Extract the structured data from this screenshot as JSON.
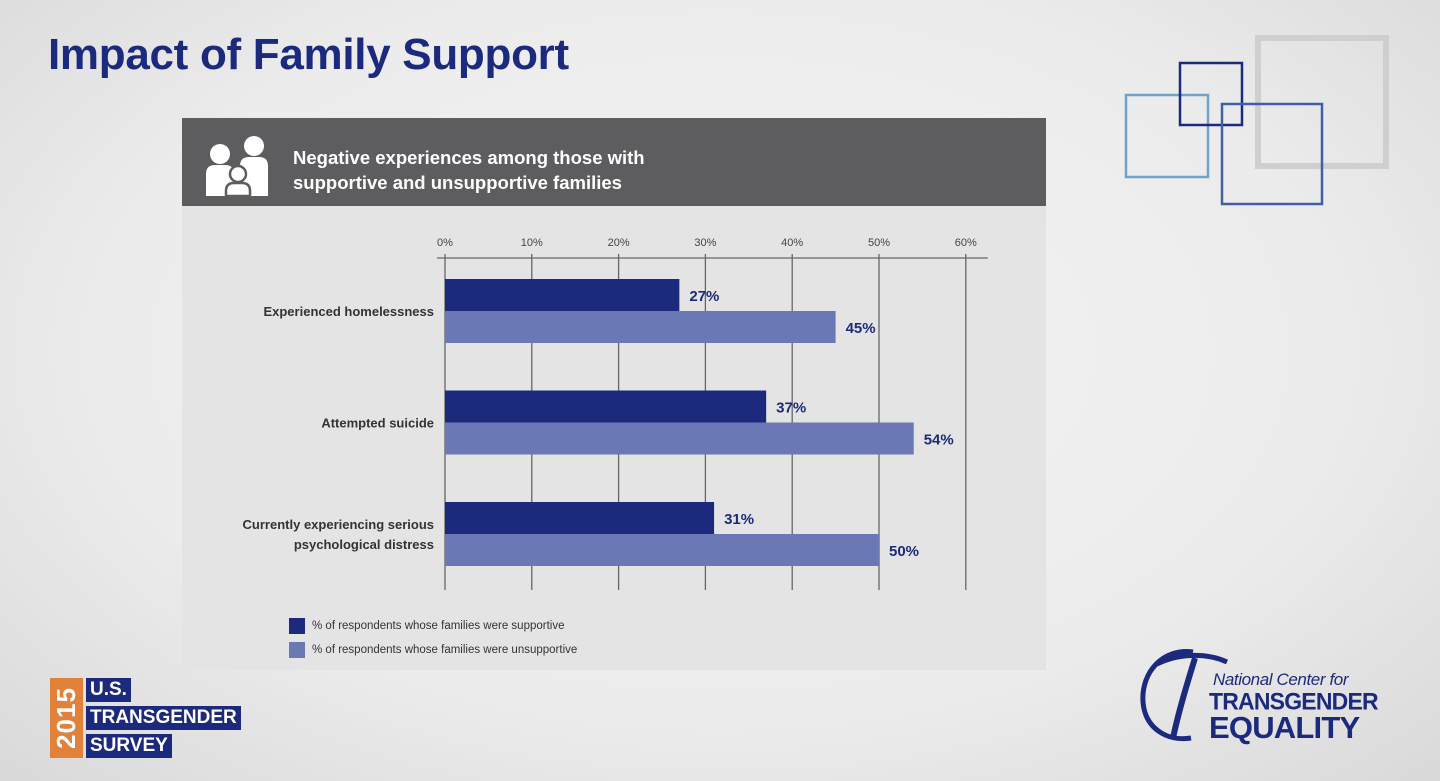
{
  "slide": {
    "title": "Impact of Family Support"
  },
  "panel": {
    "title_line1": "Negative experiences among those with",
    "title_line2": "supportive and unsupportive families",
    "icon": "family-icon"
  },
  "colors": {
    "supportive": "#1b2a7c",
    "unsupportive": "#6a78b5",
    "panel_header": "#5d5d5f",
    "panel_bg": "#e4e4e4",
    "title": "#1b2a7c",
    "accent_orange": "#e2813a"
  },
  "chart_data": {
    "type": "bar",
    "orientation": "horizontal",
    "categories": [
      "Experienced homelessness",
      "Attempted suicide",
      "Currently experiencing serious psychological distress"
    ],
    "category_label_lines": [
      [
        "Experienced homelessness"
      ],
      [
        "Attempted suicide"
      ],
      [
        "Currently experiencing serious",
        "psychological distress"
      ]
    ],
    "series": [
      {
        "name": "% of respondents whose families were supportive",
        "values": [
          27,
          37,
          31
        ],
        "labels": [
          "27%",
          "37%",
          "31%"
        ]
      },
      {
        "name": "% of respondents whose families were unsupportive",
        "values": [
          45,
          54,
          50
        ],
        "labels": [
          "45%",
          "54%",
          "50%"
        ]
      }
    ],
    "xlim": [
      0,
      60
    ],
    "xticks": [
      "0%",
      "10%",
      "20%",
      "30%",
      "40%",
      "50%",
      "60%"
    ],
    "axis_position": "top",
    "grid": true,
    "legend_position": "bottom-left"
  },
  "logos": {
    "ust": {
      "year": "2015",
      "lines": [
        "U.S.",
        "TRANSGENDER",
        "SURVEY"
      ]
    },
    "nct": {
      "line1": "National Center for",
      "line2": "TRANSGENDER",
      "line3": "EQUALITY"
    }
  }
}
